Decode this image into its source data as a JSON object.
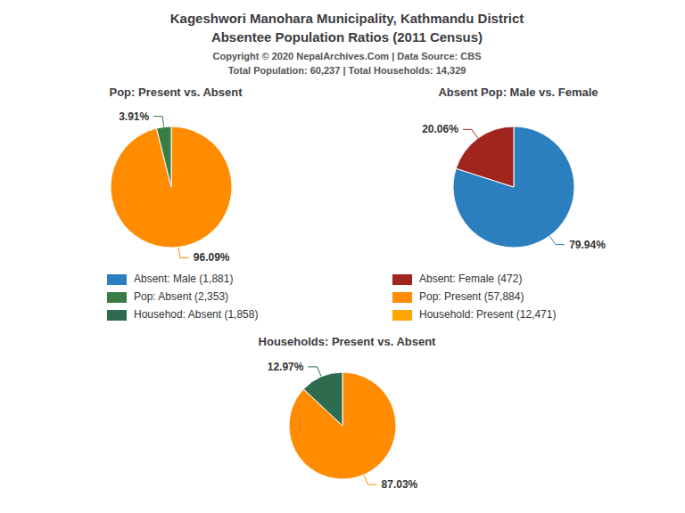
{
  "title": [
    "Kageshwori Manohara Municipality, Kathmandu District",
    "Absentee Population Ratios (2011 Census)"
  ],
  "subtitle": [
    "Copyright © 2020 NepalArchives.Com | Data Source: CBS",
    "Total Population: 60,237 | Total Households: 14,329"
  ],
  "annotations": [
    {
      "text": "Absent: Male (1,881)",
      "color": "#2B7FBF"
    },
    {
      "text": "Pop: Absent (2,353)",
      "color": "#3A7D44"
    },
    {
      "text": "Househod: Absent (1,858)",
      "color": "#2E6B4F"
    },
    {
      "text": "Absent: Female (472)",
      "color": "#A0251E"
    },
    {
      "text": "Pop: Present (57,884)",
      "color": "#FF8C00"
    },
    {
      "text": "Household: Present (12,471)",
      "color": "#FFA500"
    }
  ],
  "chart_data": [
    {
      "type": "pie",
      "title": "Pop: Present vs. Absent",
      "values": [
        96.09,
        3.91
      ],
      "value_labels": [
        "96.09%",
        "3.91%"
      ],
      "colors": [
        "#FF8C00",
        "#3A7D44"
      ],
      "data_labels": true
    },
    {
      "type": "pie",
      "title": "Absent Pop: Male vs. Female",
      "values": [
        79.94,
        20.06
      ],
      "value_labels": [
        "79.94%",
        "20.06%"
      ],
      "colors": [
        "#2B7FBF",
        "#A0251E"
      ],
      "data_labels": true
    },
    {
      "type": "pie",
      "title": "Households: Present vs. Absent",
      "values": [
        87.03,
        12.97
      ],
      "value_labels": [
        "87.03%",
        "12.97%"
      ],
      "colors": [
        "#FF8C00",
        "#2E6B4F"
      ],
      "data_labels": true
    }
  ]
}
